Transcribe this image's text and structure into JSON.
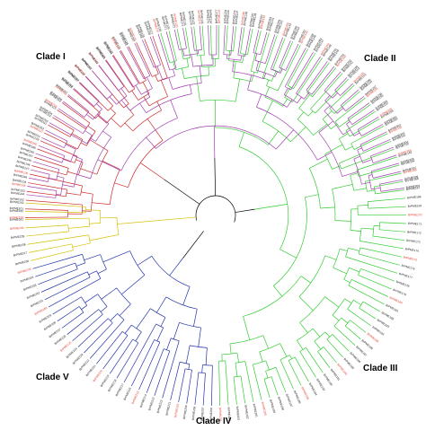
{
  "figure": {
    "clades": [
      {
        "label": "Clade I",
        "color": "#cc2a2a"
      },
      {
        "label": "Clade II",
        "color": "#33cc33"
      },
      {
        "label": "Clade III",
        "color": "#2233aa"
      },
      {
        "label": "Clade IV",
        "color": "#d4c000"
      },
      {
        "label": "Clade V",
        "color": "#a040b0"
      }
    ],
    "root_color": "#000000",
    "leaf_colors": {
      "default": "#222222",
      "highlight": "#e03a2a"
    },
    "leaf_label_pattern": "BrPME###"
  }
}
